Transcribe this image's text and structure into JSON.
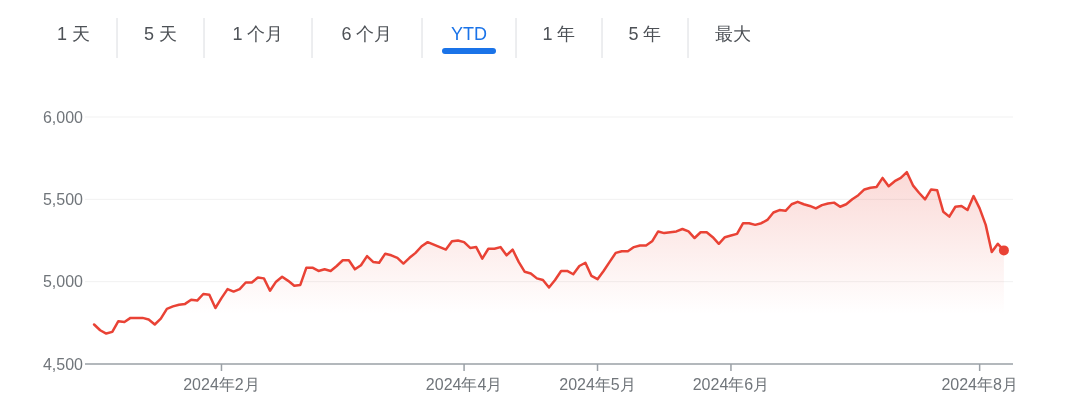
{
  "chart_data": {
    "type": "area",
    "annotations": [
      "1 天",
      "5 天",
      "1 个月",
      "6 个月",
      "YTD",
      "1 年",
      "5 年",
      "最大"
    ],
    "categories": [
      null,
      null,
      null,
      null,
      null,
      null,
      null,
      null,
      null,
      null,
      null,
      null,
      null,
      null,
      null,
      null,
      null,
      null,
      null,
      null,
      null,
      "2024年2月",
      null,
      null,
      null,
      null,
      null,
      null,
      null,
      null,
      null,
      null,
      null,
      null,
      null,
      null,
      null,
      null,
      null,
      null,
      null,
      null,
      null,
      null,
      null,
      null,
      null,
      null,
      null,
      null,
      null,
      null,
      null,
      null,
      null,
      null,
      null,
      null,
      null,
      null,
      null,
      "2024年4月",
      null,
      null,
      null,
      null,
      null,
      null,
      null,
      null,
      null,
      null,
      null,
      null,
      null,
      null,
      null,
      null,
      null,
      null,
      null,
      null,
      null,
      "2024年5月",
      null,
      null,
      null,
      null,
      null,
      null,
      null,
      null,
      null,
      null,
      null,
      null,
      null,
      null,
      null,
      null,
      null,
      null,
      null,
      null,
      null,
      "2024年6月",
      null,
      null,
      null,
      null,
      null,
      null,
      null,
      null,
      null,
      null,
      null,
      null,
      null,
      null,
      null,
      null,
      null,
      null,
      null,
      null,
      null,
      null,
      null,
      null,
      null,
      null,
      null,
      null,
      null,
      null,
      null,
      null,
      null,
      null,
      null,
      null,
      null,
      null,
      null,
      null,
      "2024年8月",
      null,
      null,
      null,
      null
    ],
    "series": [
      {
        "color": "#e94235",
        "values": [
          4740,
          4705,
          4685,
          4695,
          4760,
          4755,
          4780,
          4780,
          4780,
          4770,
          4740,
          4775,
          4835,
          4850,
          4860,
          4865,
          4890,
          4885,
          4925,
          4920,
          4840,
          4900,
          4955,
          4940,
          4955,
          4995,
          4995,
          5025,
          5020,
          4945,
          5000,
          5030,
          5005,
          4975,
          4980,
          5085,
          5085,
          5065,
          5075,
          5065,
          5095,
          5130,
          5130,
          5075,
          5100,
          5155,
          5120,
          5115,
          5170,
          5160,
          5145,
          5110,
          5145,
          5175,
          5215,
          5240,
          5225,
          5210,
          5195,
          5245,
          5250,
          5240,
          5205,
          5210,
          5140,
          5200,
          5200,
          5210,
          5160,
          5195,
          5120,
          5060,
          5050,
          5020,
          5010,
          4965,
          5010,
          5065,
          5065,
          5045,
          5095,
          5115,
          5035,
          5015,
          5065,
          5120,
          5175,
          5185,
          5185,
          5210,
          5220,
          5220,
          5245,
          5305,
          5295,
          5300,
          5305,
          5320,
          5305,
          5265,
          5300,
          5300,
          5270,
          5230,
          5270,
          5280,
          5290,
          5355,
          5355,
          5345,
          5355,
          5375,
          5420,
          5435,
          5430,
          5470,
          5485,
          5470,
          5460,
          5445,
          5465,
          5475,
          5480,
          5455,
          5470,
          5500,
          5525,
          5560,
          5570,
          5575,
          5630,
          5580,
          5610,
          5630,
          5665,
          5585,
          5540,
          5500,
          5560,
          5555,
          5425,
          5395,
          5455,
          5460,
          5435,
          5520,
          5445,
          5345,
          5180,
          5230,
          5190
        ]
      }
    ],
    "ylim": [
      4500,
      6000
    ],
    "yticks": [
      {
        "value": 4500,
        "label": "4,500"
      },
      {
        "value": 5000,
        "label": "5,000"
      },
      {
        "value": 5500,
        "label": "5,500"
      },
      {
        "value": 6000,
        "label": "6,000"
      }
    ],
    "grid": "y"
  }
}
